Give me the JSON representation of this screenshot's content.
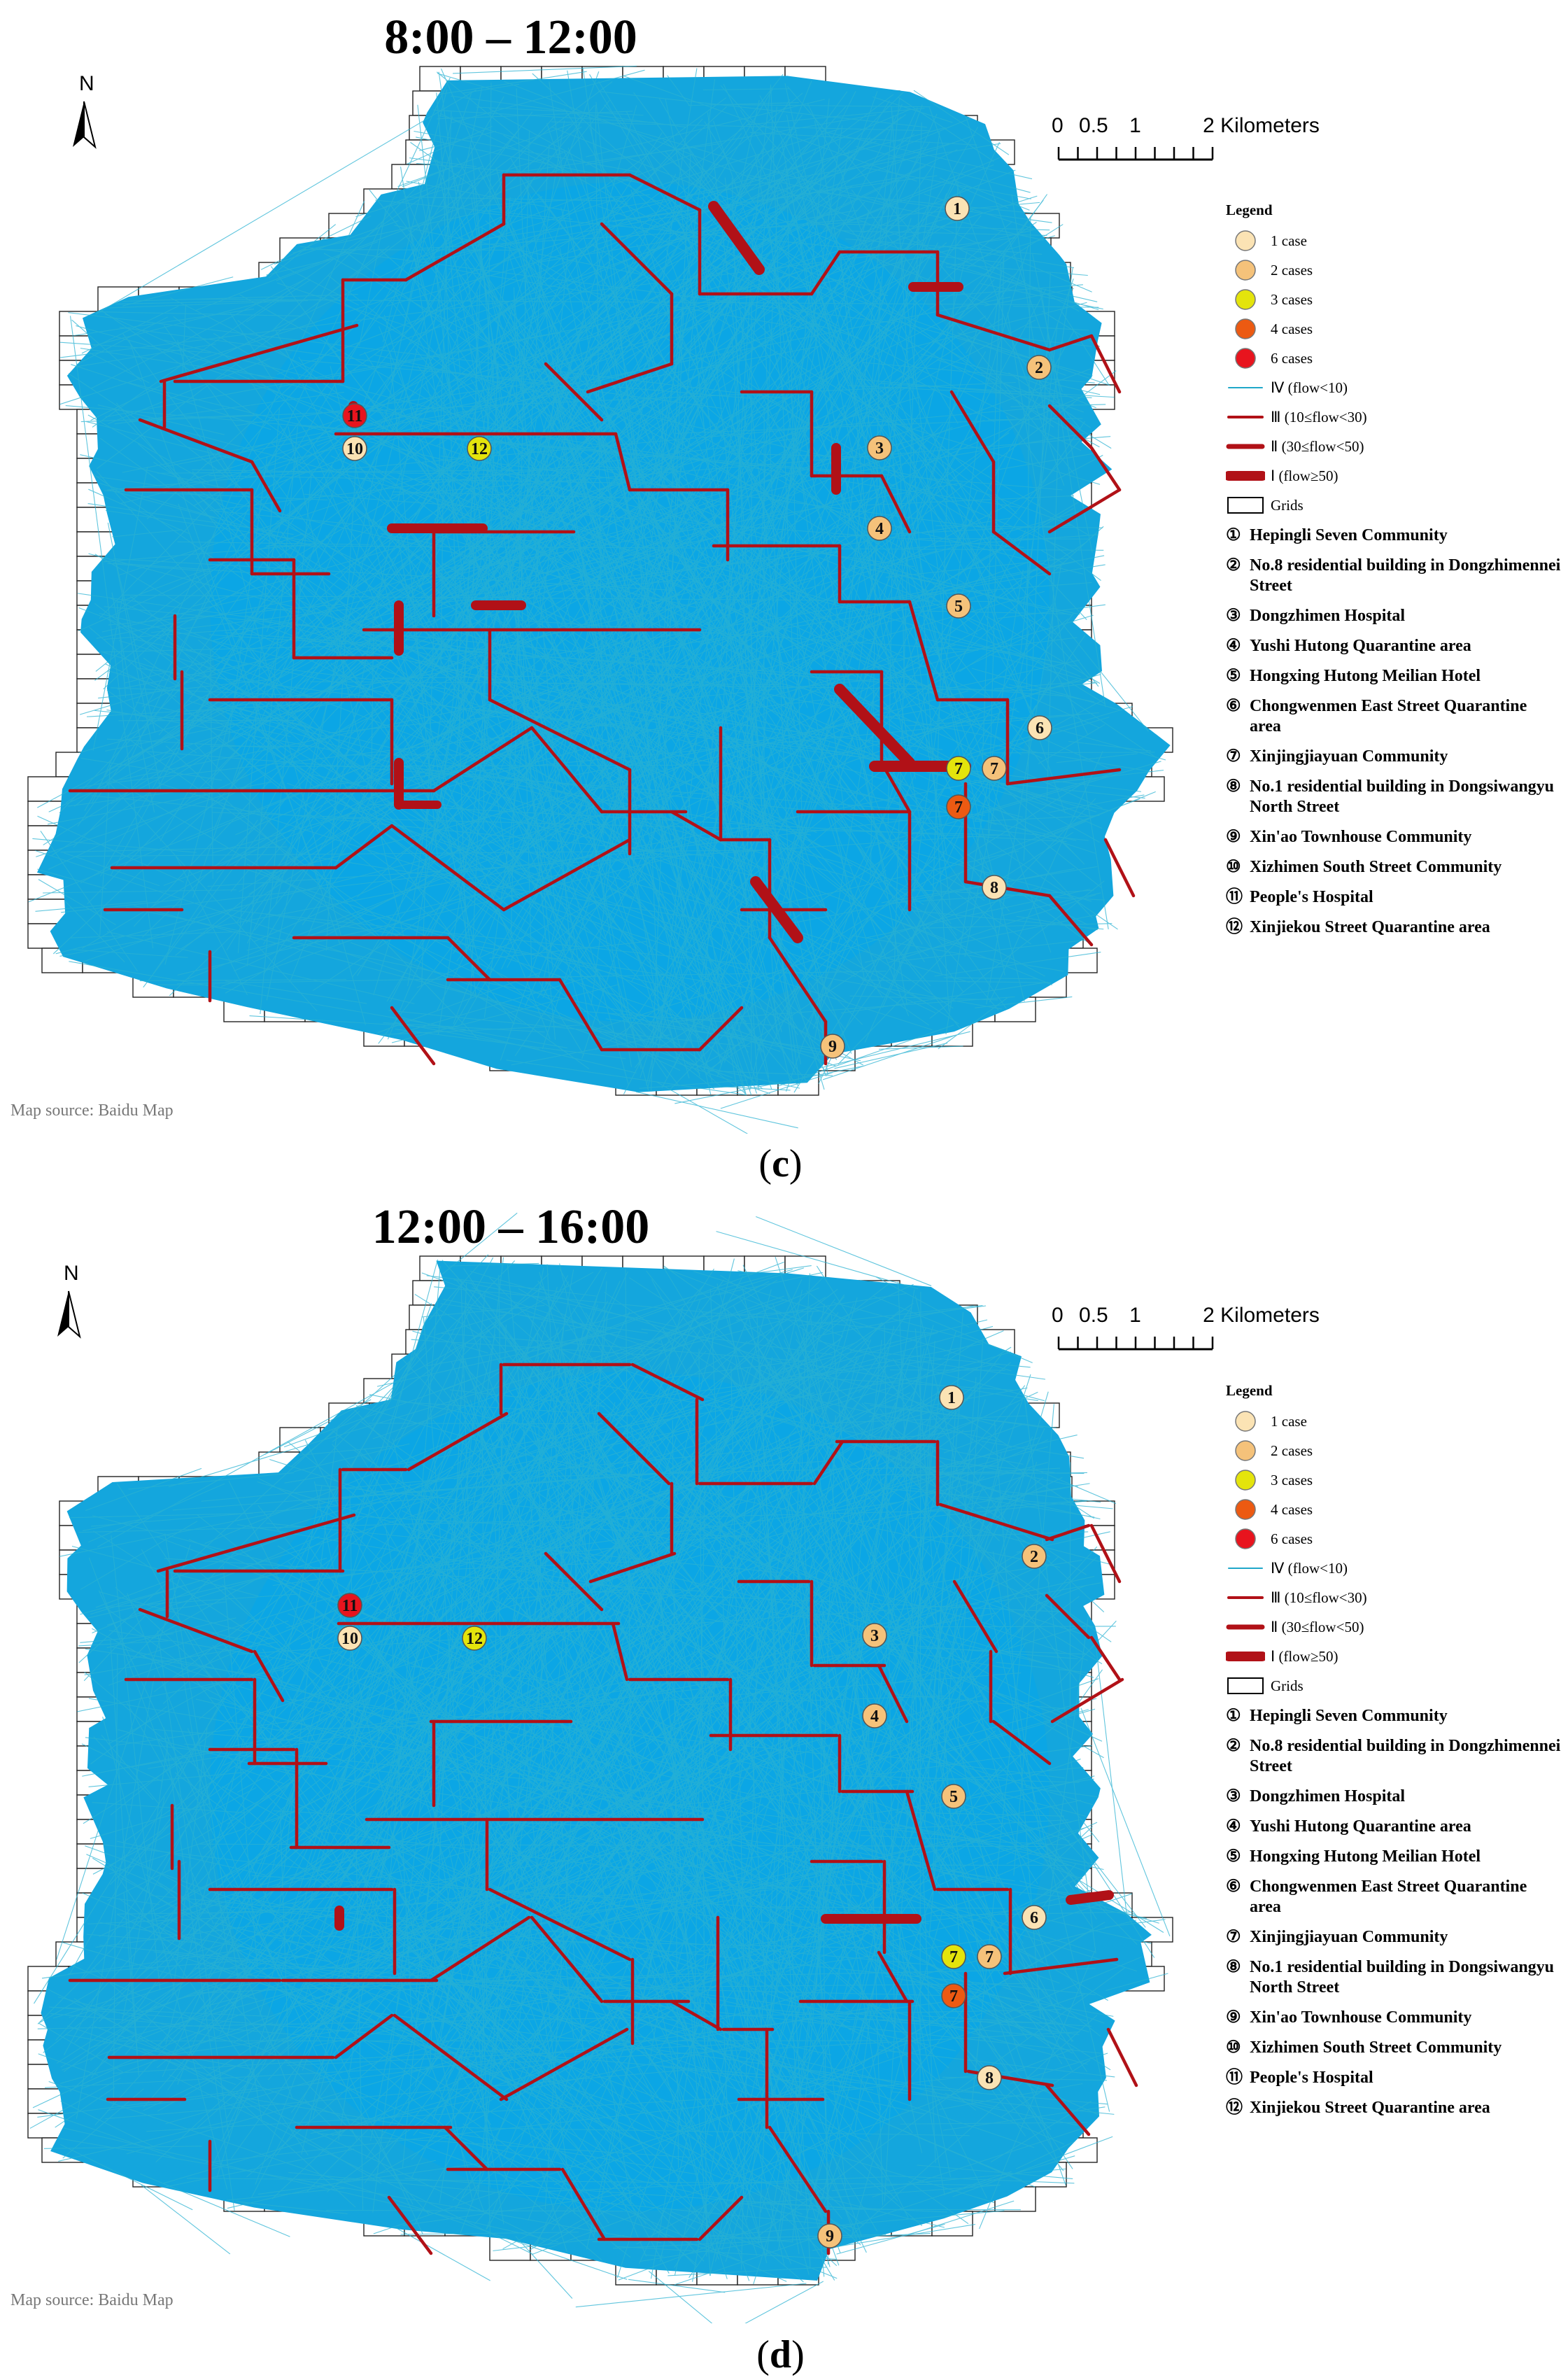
{
  "panels": [
    {
      "id": "c",
      "title": "8:00 – 12:00",
      "label": "c",
      "north_label": "N",
      "scale_ticks": [
        "0",
        "0.5",
        "1",
        "2"
      ],
      "scale_unit": "Kilometers",
      "source": "Map source: Baidu Map"
    },
    {
      "id": "d",
      "title": "12:00 – 16:00",
      "label": "d",
      "north_label": "N",
      "scale_ticks": [
        "0",
        "0.5",
        "1",
        "2"
      ],
      "scale_unit": "Kilometers",
      "source": "Map source: Baidu Map"
    }
  ],
  "legend": {
    "title": "Legend",
    "cases": [
      {
        "label": "1 case",
        "color": "#fbe3b4"
      },
      {
        "label": "2 cases",
        "color": "#f5c27a"
      },
      {
        "label": "3 cases",
        "color": "#e4e40c"
      },
      {
        "label": "4 cases",
        "color": "#ec5a12"
      },
      {
        "label": "6 cases",
        "color": "#e8141e"
      }
    ],
    "flows": [
      {
        "label": "Ⅳ (flow<10)",
        "color": "#1fa7c9"
      },
      {
        "label": "Ⅲ (10≤flow<30)",
        "color": "#b11117"
      },
      {
        "label": "Ⅱ (30≤flow<50)",
        "color": "#b11117"
      },
      {
        "label": "Ⅰ (flow≥50)",
        "color": "#b11117"
      }
    ],
    "grids": "Grids",
    "locations": [
      {
        "num": "①",
        "name": "Hepingli Seven Community"
      },
      {
        "num": "②",
        "name": "No.8 residential building in Dongzhimennei Street"
      },
      {
        "num": "③",
        "name": "Dongzhimen Hospital"
      },
      {
        "num": "④",
        "name": "Yushi Hutong Quarantine area"
      },
      {
        "num": "⑤",
        "name": "Hongxing Hutong Meilian Hotel"
      },
      {
        "num": "⑥",
        "name": "Chongwenmen East Street Quarantine area"
      },
      {
        "num": "⑦",
        "name": "Xinjingjiayuan Community"
      },
      {
        "num": "⑧",
        "name": "No.1 residential building in Dongsiwangyu North Street"
      },
      {
        "num": "⑨",
        "name": "Xin'ao Townhouse Community"
      },
      {
        "num": "⑩",
        "name": "Xizhimen South Street Community"
      },
      {
        "num": "⑪",
        "name": "People's Hospital"
      },
      {
        "num": "⑫",
        "name": "Xinjiekou Street Quarantine area"
      }
    ]
  },
  "markers": [
    {
      "label": "1",
      "cases": 1
    },
    {
      "label": "2",
      "cases": 2
    },
    {
      "label": "3",
      "cases": 2
    },
    {
      "label": "4",
      "cases": 2
    },
    {
      "label": "5",
      "cases": 2
    },
    {
      "label": "6",
      "cases": 1
    },
    {
      "label": "7",
      "cases": 3
    },
    {
      "label": "7",
      "cases": 2
    },
    {
      "label": "7",
      "cases": 4
    },
    {
      "label": "8",
      "cases": 1
    },
    {
      "label": "9",
      "cases": 2
    },
    {
      "label": "10",
      "cases": 1
    },
    {
      "label": "11",
      "cases": 6
    },
    {
      "label": "12",
      "cases": 3
    }
  ]
}
